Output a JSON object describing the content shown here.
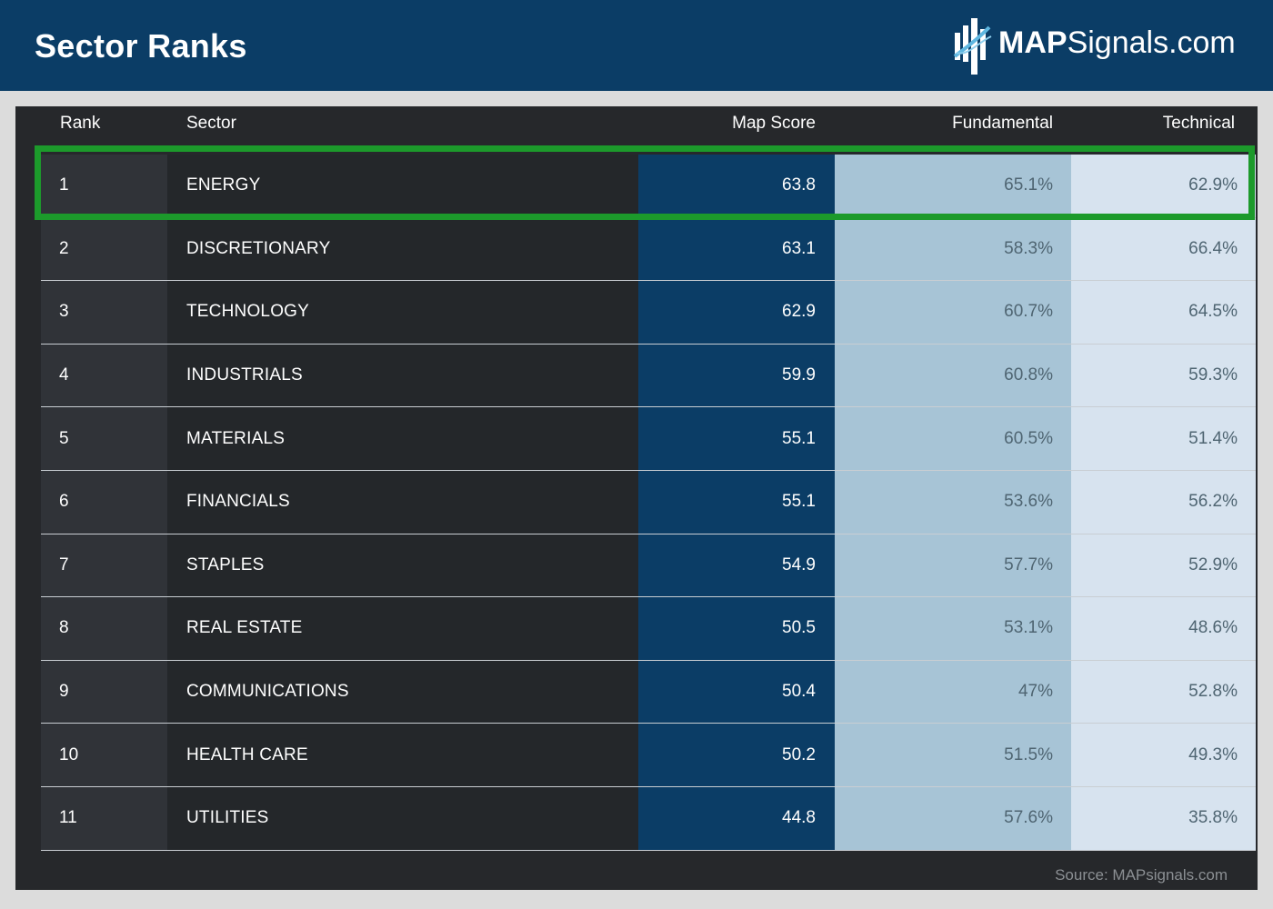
{
  "header": {
    "title": "Sector Ranks",
    "logo_text_bold": "MAP",
    "logo_text_light": "Signals.com"
  },
  "colors": {
    "header_bg": "#0b3d66",
    "highlight": "#1c9a2b",
    "score_bg": "#0b3d66",
    "fundamental_bg": "#a7c4d6",
    "technical_bg": "#d7e3ef"
  },
  "chart_data": {
    "type": "table",
    "columns": [
      "Rank",
      "Sector",
      "Map Score",
      "Fundamental",
      "Technical"
    ],
    "highlighted_row": 1,
    "rows": [
      {
        "rank": "1",
        "sector": "ENERGY",
        "map_score": "63.8",
        "fundamental": "65.1%",
        "technical": "62.9%"
      },
      {
        "rank": "2",
        "sector": "DISCRETIONARY",
        "map_score": "63.1",
        "fundamental": "58.3%",
        "technical": "66.4%"
      },
      {
        "rank": "3",
        "sector": "TECHNOLOGY",
        "map_score": "62.9",
        "fundamental": "60.7%",
        "technical": "64.5%"
      },
      {
        "rank": "4",
        "sector": "INDUSTRIALS",
        "map_score": "59.9",
        "fundamental": "60.8%",
        "technical": "59.3%"
      },
      {
        "rank": "5",
        "sector": "MATERIALS",
        "map_score": "55.1",
        "fundamental": "60.5%",
        "technical": "51.4%"
      },
      {
        "rank": "6",
        "sector": "FINANCIALS",
        "map_score": "55.1",
        "fundamental": "53.6%",
        "technical": "56.2%"
      },
      {
        "rank": "7",
        "sector": "STAPLES",
        "map_score": "54.9",
        "fundamental": "57.7%",
        "technical": "52.9%"
      },
      {
        "rank": "8",
        "sector": "REAL ESTATE",
        "map_score": "50.5",
        "fundamental": "53.1%",
        "technical": "48.6%"
      },
      {
        "rank": "9",
        "sector": "COMMUNICATIONS",
        "map_score": "50.4",
        "fundamental": "47%",
        "technical": "52.8%"
      },
      {
        "rank": "10",
        "sector": "HEALTH CARE",
        "map_score": "50.2",
        "fundamental": "51.5%",
        "technical": "49.3%"
      },
      {
        "rank": "11",
        "sector": "UTILITIES",
        "map_score": "44.8",
        "fundamental": "57.6%",
        "technical": "35.8%"
      }
    ],
    "source": "Source: MAPsignals.com"
  }
}
